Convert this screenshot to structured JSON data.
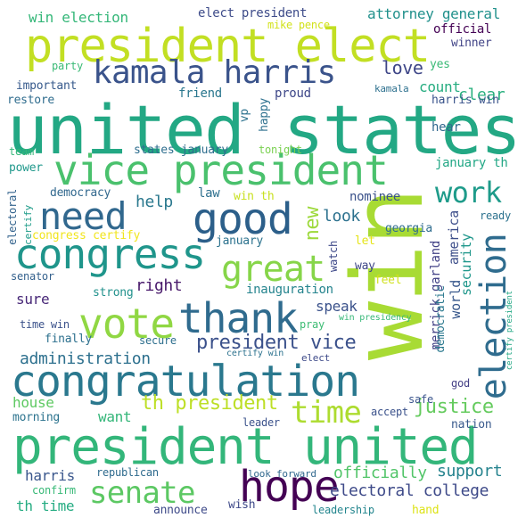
{
  "words": [
    {
      "text": "united states",
      "color": "#23a884"
    },
    {
      "text": "win",
      "color": "#a8db34"
    },
    {
      "text": "president united",
      "color": "#33b67a"
    },
    {
      "text": "president elect",
      "color": "#c2df23"
    },
    {
      "text": "vice president",
      "color": "#4ac16d"
    },
    {
      "text": "congratulation",
      "color": "#2a788e"
    },
    {
      "text": "good",
      "color": "#2c5f8a"
    },
    {
      "text": "congress",
      "color": "#1f958b"
    },
    {
      "text": "hope",
      "color": "#440154"
    },
    {
      "text": "thank",
      "color": "#2f6b8e"
    },
    {
      "text": "vote",
      "color": "#90d743"
    },
    {
      "text": "need",
      "color": "#31688e"
    },
    {
      "text": "election",
      "color": "#2f6c8e"
    },
    {
      "text": "kamala harris",
      "color": "#3a538b"
    },
    {
      "text": "great",
      "color": "#86d549"
    },
    {
      "text": "senate",
      "color": "#5cc863"
    },
    {
      "text": "work",
      "color": "#1e9b8a"
    },
    {
      "text": "time",
      "color": "#addc30"
    },
    {
      "text": "president vice",
      "color": "#3b518b"
    },
    {
      "text": "th president",
      "color": "#bddf26"
    },
    {
      "text": "justice",
      "color": "#65cb5e"
    },
    {
      "text": "electoral college",
      "color": "#3e4a89"
    },
    {
      "text": "administration",
      "color": "#2d708e"
    },
    {
      "text": "officially",
      "color": "#52c569"
    },
    {
      "text": "support",
      "color": "#25838e"
    },
    {
      "text": "love",
      "color": "#3f4788"
    },
    {
      "text": "clear",
      "color": "#2ab07f"
    },
    {
      "text": "right",
      "color": "#48196b"
    },
    {
      "text": "help",
      "color": "#2a788e"
    },
    {
      "text": "new",
      "color": "#9dd93b"
    },
    {
      "text": "look",
      "color": "#2c718e"
    },
    {
      "text": "speak",
      "color": "#3b528b"
    },
    {
      "text": "want",
      "color": "#34b679"
    },
    {
      "text": "house",
      "color": "#5ec962"
    },
    {
      "text": "harris",
      "color": "#39568c"
    },
    {
      "text": "sure",
      "color": "#482878"
    },
    {
      "text": "win election",
      "color": "#35b779"
    },
    {
      "text": "elect president",
      "color": "#3e4c8a"
    },
    {
      "text": "attorney general",
      "color": "#21918c"
    },
    {
      "text": "official",
      "color": "#440154"
    },
    {
      "text": "winner",
      "color": "#414487"
    },
    {
      "text": "yes",
      "color": "#3aba76"
    },
    {
      "text": "mike pence",
      "color": "#d2e21b"
    },
    {
      "text": "party",
      "color": "#3aba76"
    },
    {
      "text": "important",
      "color": "#375a8c"
    },
    {
      "text": "restore",
      "color": "#2f6c8e"
    },
    {
      "text": "friend",
      "color": "#2a778e"
    },
    {
      "text": "proud",
      "color": "#3f4889"
    },
    {
      "text": "kamala",
      "color": "#2d708e"
    },
    {
      "text": "count",
      "color": "#27ad81"
    },
    {
      "text": "harris win",
      "color": "#3a548c"
    },
    {
      "text": "hear",
      "color": "#31688e"
    },
    {
      "text": "vp",
      "color": "#2c728e"
    },
    {
      "text": "happy",
      "color": "#2d708e"
    },
    {
      "text": "tonight",
      "color": "#7ad151"
    },
    {
      "text": "team",
      "color": "#35b779"
    },
    {
      "text": "states january",
      "color": "#2e6e8e"
    },
    {
      "text": "january th",
      "color": "#22a785"
    },
    {
      "text": "power",
      "color": "#1f988b"
    },
    {
      "text": "democracy",
      "color": "#31688e"
    },
    {
      "text": "law",
      "color": "#2d708e"
    },
    {
      "text": "win th",
      "color": "#c8e020"
    },
    {
      "text": "nominee",
      "color": "#3b528b"
    },
    {
      "text": "ready",
      "color": "#2c728e"
    },
    {
      "text": "electoral",
      "color": "#33638d"
    },
    {
      "text": "certify",
      "color": "#1e9c89"
    },
    {
      "text": "congress certify",
      "color": "#f1e51d"
    },
    {
      "text": "january",
      "color": "#2c728e"
    },
    {
      "text": "georgia",
      "color": "#2f6c8e"
    },
    {
      "text": "america",
      "color": "#3d4e8a"
    },
    {
      "text": "security",
      "color": "#1f978b"
    },
    {
      "text": "world",
      "color": "#38588c"
    },
    {
      "text": "let",
      "color": "#e5e419"
    },
    {
      "text": "way",
      "color": "#3f4788"
    },
    {
      "text": "watch",
      "color": "#3e4989"
    },
    {
      "text": "feel",
      "color": "#d0e11c"
    },
    {
      "text": "senator",
      "color": "#34618d"
    },
    {
      "text": "strong",
      "color": "#21918c"
    },
    {
      "text": "inauguration",
      "color": "#25848e"
    },
    {
      "text": "merrick garland",
      "color": "#424186"
    },
    {
      "text": "democratic",
      "color": "#2a788e"
    },
    {
      "text": "pray",
      "color": "#3dbc74"
    },
    {
      "text": "win presidency",
      "color": "#37b878"
    },
    {
      "text": "time win",
      "color": "#3b528b"
    },
    {
      "text": "finally",
      "color": "#2d708e"
    },
    {
      "text": "secure",
      "color": "#2e6f8e"
    },
    {
      "text": "certify win",
      "color": "#2c728e"
    },
    {
      "text": "elect",
      "color": "#3e4a89"
    },
    {
      "text": "safe",
      "color": "#3a548c"
    },
    {
      "text": "accept",
      "color": "#3b528b"
    },
    {
      "text": "god",
      "color": "#433e85"
    },
    {
      "text": "certify president",
      "color": "#22a884"
    },
    {
      "text": "morning",
      "color": "#2c738e"
    },
    {
      "text": "leader",
      "color": "#3b528b"
    },
    {
      "text": "nation",
      "color": "#38598c"
    },
    {
      "text": "republican",
      "color": "#2f6b8e"
    },
    {
      "text": "look forward",
      "color": "#31688e"
    },
    {
      "text": "confirm",
      "color": "#38b977"
    },
    {
      "text": "th time",
      "color": "#25ac82"
    },
    {
      "text": "announce",
      "color": "#3e4a89"
    },
    {
      "text": "wish",
      "color": "#3e4989"
    },
    {
      "text": "leadership",
      "color": "#24868e"
    },
    {
      "text": "hand",
      "color": "#dde318"
    }
  ]
}
